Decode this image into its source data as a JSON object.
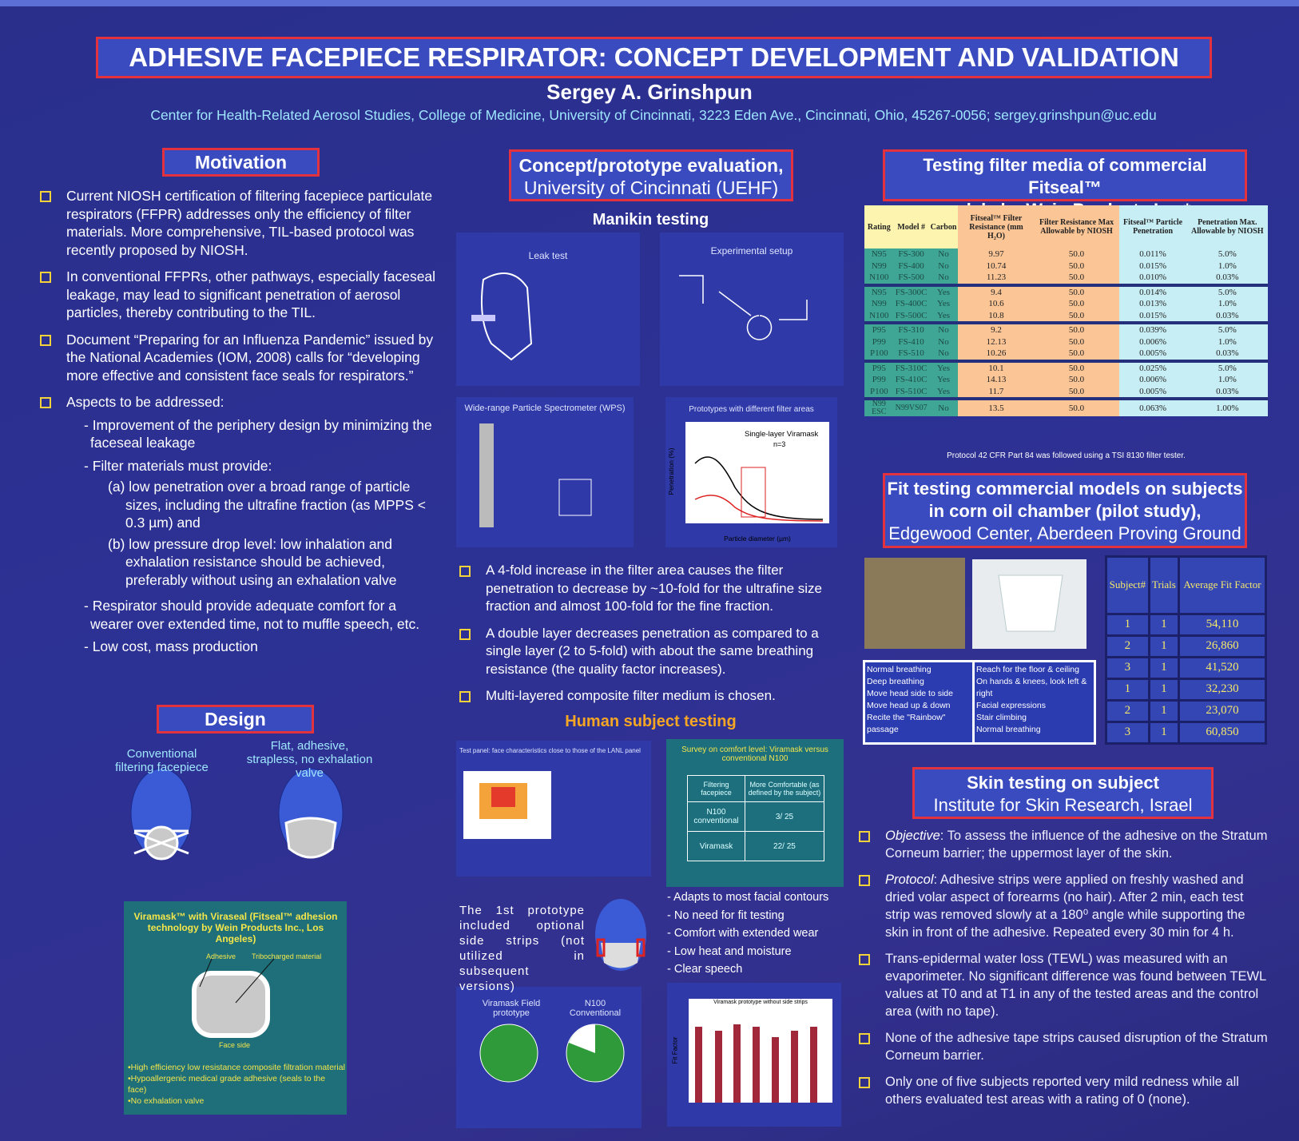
{
  "header": {
    "title": "ADHESIVE FACEPIECE RESPIRATOR: CONCEPT DEVELOPMENT AND VALIDATION",
    "author": "Sergey A. Grinshpun",
    "affiliation": "Center for Health-Related Aerosol Studies,  College of Medicine, University of Cincinnati, 3223 Eden Ave., Cincinnati, Ohio, 45267-0056; sergey.grinshpun@uc.edu"
  },
  "motivation": {
    "heading": "Motivation",
    "bullets": [
      {
        "text": "Current NIOSH certification of filtering facepiece particulate respirators (FFPR) addresses only the efficiency of filter materials.  More comprehensive, TIL-based protocol was recently proposed by NIOSH."
      },
      {
        "text": "In conventional FFPRs, other pathways, especially faceseal leakage, may lead to significant penetration of aerosol particles, thereby contributing to the TIL."
      },
      {
        "text": "Document “Preparing for an Influenza Pandemic” issued by the National Academies (IOM, 2008) calls for “developing more effective and consistent face seals for respirators.”"
      },
      {
        "text": "Aspects to be addressed:",
        "items": [
          {
            "text": "- Improvement of the periphery design by minimizing the faceseal leakage"
          },
          {
            "text": "- Filter materials must provide:",
            "sub": [
              "(a) low penetration over a broad range of particle sizes, including the ultrafine fraction (as MPPS < 0.3 µm) and",
              "(b) low pressure drop level: low inhalation and exhalation resistance should be achieved, preferably without using an exhalation valve"
            ]
          },
          {
            "text": "- Respirator should provide adequate comfort for a wearer over extended time, not to muffle speech, etc."
          },
          {
            "text": "- Low cost, mass production"
          }
        ]
      }
    ]
  },
  "design": {
    "heading": "Design",
    "conventional_label": "Conventional filtering facepiece",
    "adhesive_label": "Flat, adhesive, strapless, no exhalation valve",
    "viramask_box": {
      "title": "Viramask™ with Viraseal (Fitseal™ adhesion technology by Wein Products Inc., Los Angeles)",
      "adhesive": "Adhesive",
      "tribocharged": "Tribocharged material",
      "face_side": "Face side",
      "features": [
        "•High efficiency low resistance composite filtration material",
        "•Hypoallergenic medical grade adhesive (seals to the face)",
        "•No exhalation valve"
      ]
    }
  },
  "concept": {
    "heading_line1": "Concept/prototype evaluation,",
    "heading_line2": "University of Cincinnati (UEHF)",
    "manikin_heading": "Manikin testing",
    "panels": {
      "leak_test": "Leak test",
      "experimental_setup": "Experimental setup",
      "wps": "Wide-range Particle Spectrometer (WPS)",
      "prototypes": "Prototypes with different filter areas",
      "prototypes_legend": "Single-layer Viramask",
      "prototypes_n": "n=3",
      "x_label": "Particle diameter (µm)",
      "y_label": "Penetration (%)"
    },
    "bullets": [
      "A 4-fold increase in the filter area causes the filter penetration to decrease by ~10-fold for the ultrafine size fraction and almost 100-fold for the fine fraction.",
      "A double layer decreases penetration as compared to a single layer (2 to 5-fold) with about the same breathing resistance (the quality factor increases).",
      "Multi-layered composite filter medium is chosen."
    ],
    "human_heading": "Human subject testing",
    "test_panel_caption": "Test panel: face characteristics close to those of the LANL panel",
    "survey": {
      "title": "Survey on comfort level: Viramask versus conventional N100",
      "rows": [
        [
          "Filtering facepiece",
          "More Comfortable (as defined by the subject)"
        ],
        [
          "N100 conventional",
          "3/ 25"
        ],
        [
          "Viramask",
          "22/ 25"
        ]
      ]
    },
    "prototype_note": "The 1st prototype included optional side strips (not utilized in subsequent versions)",
    "advantages": [
      "- Adapts to most facial contours",
      "- No need for fit testing",
      "- Comfort with extended wear",
      "- Low heat and moisture",
      "- Clear speech"
    ],
    "pie_labels": [
      "Viramask Field prototype",
      "N100 Conventional"
    ],
    "bar_title": "Viramask prototype without side strips",
    "bar_y_label": "Fit Factor"
  },
  "filter_testing": {
    "heading_line1": "Testing filter media of commercial Fitseal™",
    "heading_line2": "models by Wein Products Inc.*,",
    "table": {
      "header": [
        "Rating",
        "Model #",
        "Carbon",
        "Fitseal™ Filter Resistance (mm H₂O)",
        "Filter Resistance Max Allowable by NIOSH",
        "Fitseal™ Particle Penetration",
        "Penetration Max. Allowable by NIOSH"
      ],
      "rows": [
        [
          "N95",
          "FS-300",
          "No",
          "9.97",
          "50.0",
          "0.011%",
          "5.0%"
        ],
        [
          "N99",
          "FS-400",
          "No",
          "10.74",
          "50.0",
          "0.015%",
          "1.0%"
        ],
        [
          "N100",
          "FS-500",
          "No",
          "11.23",
          "50.0",
          "0.010%",
          "0.03%"
        ],
        [
          "N95",
          "FS-300C",
          "Yes",
          "9.4",
          "50.0",
          "0.014%",
          "5.0%"
        ],
        [
          "N99",
          "FS-400C",
          "Yes",
          "10.6",
          "50.0",
          "0.013%",
          "1.0%"
        ],
        [
          "N100",
          "FS-500C",
          "Yes",
          "10.8",
          "50.0",
          "0.015%",
          "0.03%"
        ],
        [
          "P95",
          "FS-310",
          "No",
          "9.2",
          "50.0",
          "0.039%",
          "5.0%"
        ],
        [
          "P99",
          "FS-410",
          "No",
          "12.13",
          "50.0",
          "0.006%",
          "1.0%"
        ],
        [
          "P100",
          "FS-510",
          "No",
          "10.26",
          "50.0",
          "0.005%",
          "0.03%"
        ],
        [
          "P95",
          "FS-310C",
          "Yes",
          "10.1",
          "50.0",
          "0.025%",
          "5.0%"
        ],
        [
          "P99",
          "FS-410C",
          "Yes",
          "14.13",
          "50.0",
          "0.006%",
          "1.0%"
        ],
        [
          "P100",
          "FS-510C",
          "Yes",
          "11.7",
          "50.0",
          "0.005%",
          "0.03%"
        ],
        [
          "N99 ESC",
          "N99VS07",
          "No",
          "13.5",
          "50.0",
          "0.063%",
          "1.00%"
        ]
      ]
    },
    "footnote": "Protocol 42 CFR Part 84 was followed using a TSI 8130 filter tester."
  },
  "fit_testing": {
    "heading_line1": "Fit testing commercial models on subjects",
    "heading_line2": "in corn oil chamber (pilot study),",
    "heading_line3": "Edgewood Center, Aberdeen Proving Ground",
    "exercises_left": [
      "Normal breathing",
      "Deep breathing",
      "Move head side to side",
      "Move head up & down",
      "Recite the \"Rainbow\" passage"
    ],
    "exercises_right": [
      "Reach for the floor & ceiling",
      "On hands & knees, look left & right",
      "Facial expressions",
      "Stair climbing",
      "Normal breathing"
    ],
    "table": {
      "header": [
        "Subject#",
        "Trials",
        "Average Fit Factor"
      ],
      "rows": [
        [
          "1",
          "1",
          "54,110"
        ],
        [
          "2",
          "1",
          "26,860"
        ],
        [
          "3",
          "1",
          "41,520"
        ],
        [
          "1",
          "1",
          "32,230"
        ],
        [
          "2",
          "1",
          "23,070"
        ],
        [
          "3",
          "1",
          "60,850"
        ]
      ]
    }
  },
  "skin_testing": {
    "heading_line1": "Skin testing on subject",
    "heading_line2": "Institute for Skin Research, Israel",
    "bullets": [
      {
        "label": "Objective",
        "text": ": To assess the influence of the adhesive on the Stratum Corneum barrier; the uppermost layer of the skin."
      },
      {
        "label": "Protocol",
        "text": ": Adhesive strips were applied on freshly washed and dried volar aspect of forearms (no hair).  After 2 min, each test strip was removed slowly at a 180⁰ angle while supporting the skin in front of the adhesive.  Repeated every 30 min for 4 h."
      },
      {
        "text": "Trans-epidermal water loss (TEWL) was measured with an evaporimeter.  No significant difference was found between TEWL values at T0 and at T1 in any of the tested areas and the control area (with no tape)."
      },
      {
        "text": "None of the adhesive tape strips caused disruption of the Stratum Corneum barrier."
      },
      {
        "text": "Only one of five subjects reported very mild redness while all others evaluated test areas with a rating of 0 (none)."
      }
    ]
  }
}
